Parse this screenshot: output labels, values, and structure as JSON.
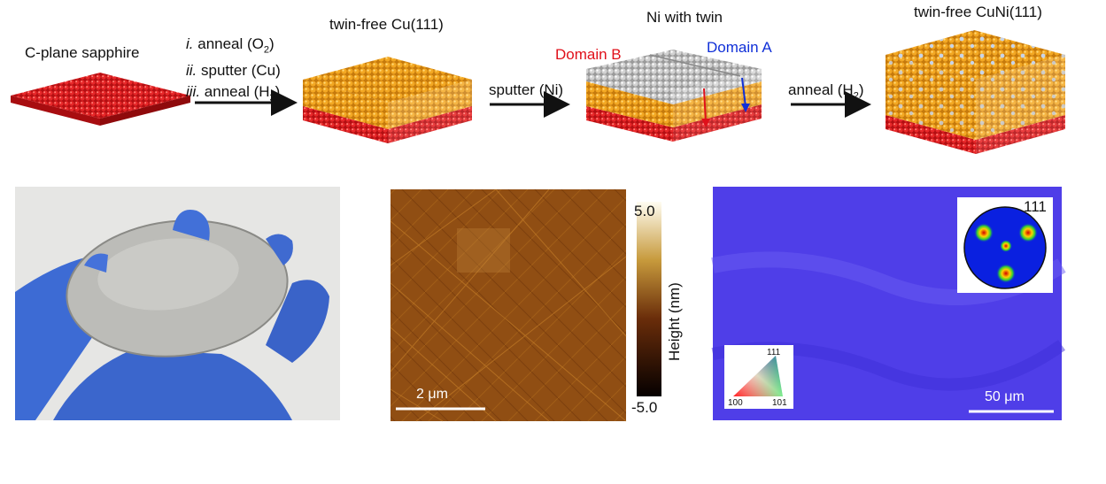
{
  "top": {
    "stage1_label": "C-plane sapphire",
    "steps": [
      {
        "num": "i.",
        "text": "anneal (O",
        "sub": "2",
        "end": ")"
      },
      {
        "num": "ii.",
        "text": "sputter (Cu)",
        "sub": "",
        "end": ""
      },
      {
        "num": "iii.",
        "text": "anneal (H",
        "sub": "2",
        "end": ")"
      }
    ],
    "stage2_label": "twin-free Cu(111)",
    "arrow2_label": "sputter (Ni)",
    "stage3_label": "Ni with twin",
    "domain_b": "Domain B",
    "domain_a": "Domain A",
    "arrow3_label": "anneal (H",
    "arrow3_sub": "2",
    "arrow3_end": ")",
    "stage4_label": "twin-free CuNi(111)"
  },
  "afm": {
    "scale_bar": "2 μm",
    "cbar_max": "5.0",
    "cbar_min": "-5.0",
    "cbar_label": "Height (nm)"
  },
  "ebsd": {
    "pole_label": "111",
    "ipf_top": "111",
    "ipf_left": "100",
    "ipf_right": "101",
    "scale_bar": "50 μm"
  },
  "colors": {
    "sapphire": "#d11a1a",
    "copper": "#f0a020",
    "nickel": "#c8c8c8",
    "ebsd": "#4f3ee8",
    "glove": "#3f6fd8"
  }
}
